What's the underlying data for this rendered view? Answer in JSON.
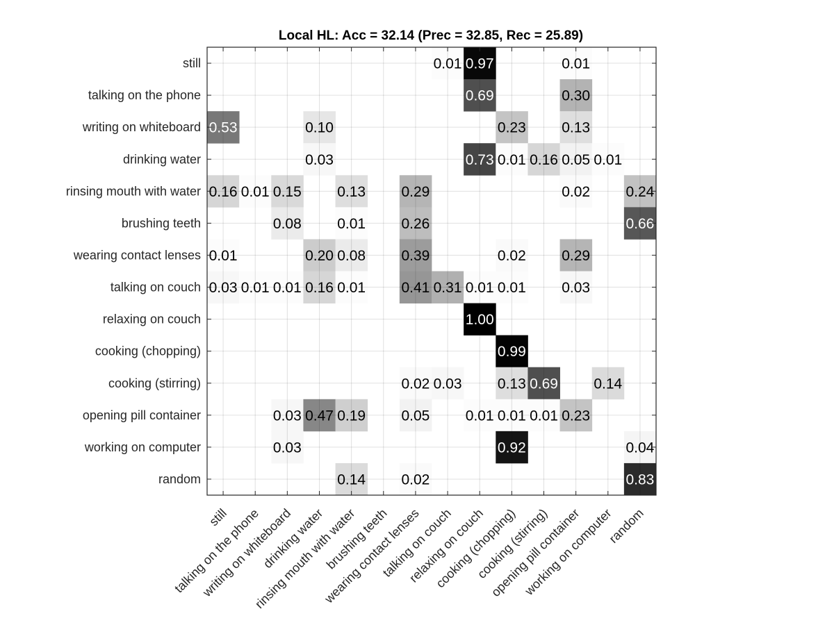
{
  "chart_data": {
    "type": "heatmap",
    "title": "Local HL: Acc = 32.14 (Prec = 32.85, Rec = 25.89)",
    "xlabel": "",
    "ylabel": "",
    "colormap": "gray (white = 0, black = 1)",
    "grid": true,
    "row_labels": [
      "still",
      "talking on the phone",
      "writing on whiteboard",
      "drinking water",
      "rinsing mouth with water",
      "brushing teeth",
      "wearing contact lenses",
      "talking on couch",
      "relaxing on couch",
      "cooking (chopping)",
      "cooking (stirring)",
      "opening pill container",
      "working on computer",
      "random"
    ],
    "col_labels": [
      "still",
      "talking on the phone",
      "writing on whiteboard",
      "drinking water",
      "rinsing mouth with water",
      "brushing teeth",
      "wearing contact lenses",
      "talking on couch",
      "relaxing on couch",
      "cooking (chopping)",
      "cooking (stirring)",
      "opening pill container",
      "working on computer",
      "random"
    ],
    "values": [
      [
        0,
        0,
        0,
        0,
        0,
        0,
        0,
        0.01,
        0.97,
        0,
        0,
        0.01,
        0,
        0
      ],
      [
        0,
        0,
        0,
        0,
        0,
        0,
        0,
        0,
        0.69,
        0,
        0,
        0.3,
        0,
        0
      ],
      [
        0.53,
        0,
        0,
        0.1,
        0,
        0,
        0,
        0,
        0,
        0.23,
        0,
        0.13,
        0,
        0
      ],
      [
        0,
        0,
        0,
        0.03,
        0,
        0,
        0,
        0,
        0.73,
        0.01,
        0.16,
        0.05,
        0.01,
        0
      ],
      [
        0.16,
        0.01,
        0.15,
        0,
        0.13,
        0,
        0.29,
        0,
        0,
        0,
        0,
        0.02,
        0,
        0.24
      ],
      [
        0,
        0,
        0.08,
        0,
        0.01,
        0,
        0.26,
        0,
        0,
        0,
        0,
        0,
        0,
        0.66
      ],
      [
        0.01,
        0,
        0,
        0.2,
        0.08,
        0,
        0.39,
        0,
        0,
        0.02,
        0,
        0.29,
        0,
        0
      ],
      [
        0.03,
        0.01,
        0.01,
        0.16,
        0.01,
        0,
        0.41,
        0.31,
        0.01,
        0.01,
        0,
        0.03,
        0,
        0
      ],
      [
        0,
        0,
        0,
        0,
        0,
        0,
        0,
        0,
        1.0,
        0,
        0,
        0,
        0,
        0
      ],
      [
        0,
        0,
        0,
        0,
        0,
        0,
        0,
        0,
        0,
        0.99,
        0,
        0,
        0,
        0
      ],
      [
        0,
        0,
        0,
        0,
        0,
        0,
        0.02,
        0.03,
        0,
        0.13,
        0.69,
        0,
        0.14,
        0
      ],
      [
        0,
        0,
        0.03,
        0.47,
        0.19,
        0,
        0.05,
        0,
        0.01,
        0.01,
        0.01,
        0.23,
        0,
        0
      ],
      [
        0,
        0,
        0.03,
        0,
        0,
        0,
        0,
        0,
        0,
        0.92,
        0,
        0,
        0,
        0.04
      ],
      [
        0,
        0,
        0,
        0,
        0.14,
        0,
        0.02,
        0,
        0,
        0,
        0,
        0,
        0,
        0.83
      ]
    ],
    "cell_text": [
      [
        "",
        "",
        "",
        "",
        "",
        "",
        "",
        "0.01",
        "0.97",
        "",
        "",
        "0.01",
        "",
        ""
      ],
      [
        "",
        "",
        "",
        "",
        "",
        "",
        "",
        "",
        "0.69",
        "",
        "",
        "0.30",
        "",
        ""
      ],
      [
        "0.53",
        "",
        "",
        "0.10",
        "",
        "",
        "",
        "",
        "",
        "0.23",
        "",
        "0.13",
        "",
        ""
      ],
      [
        "",
        "",
        "",
        "0.03",
        "",
        "",
        "",
        "",
        "0.73",
        "0.01",
        "0.16",
        "0.05",
        "0.01",
        ""
      ],
      [
        "0.16",
        "0.01",
        "0.15",
        "",
        "0.13",
        "",
        "0.29",
        "",
        "",
        "",
        "",
        "0.02",
        "",
        "0.24"
      ],
      [
        "",
        "",
        "0.08",
        "",
        "0.01",
        "",
        "0.26",
        "",
        "",
        "",
        "",
        "",
        "",
        "0.66"
      ],
      [
        "0.01",
        "",
        "",
        "0.20",
        "0.08",
        "",
        "0.39",
        "",
        "",
        "0.02",
        "",
        "0.29",
        "",
        ""
      ],
      [
        "0.03",
        "0.01",
        "0.01",
        "0.16",
        "0.01",
        "",
        "0.41",
        "0.31",
        "0.01",
        "0.01",
        "",
        "0.03",
        "",
        ""
      ],
      [
        "",
        "",
        "",
        "",
        "",
        "",
        "",
        "",
        "1.00",
        "",
        "",
        "",
        "",
        ""
      ],
      [
        "",
        "",
        "",
        "",
        "",
        "",
        "",
        "",
        "",
        "0.99",
        "",
        "",
        "",
        ""
      ],
      [
        "",
        "",
        "",
        "",
        "",
        "",
        "0.02",
        "0.03",
        "",
        "0.13",
        "0.69",
        "",
        "0.14",
        ""
      ],
      [
        "",
        "",
        "0.03",
        "0.47",
        "0.19",
        "",
        "0.05",
        "",
        "0.01",
        "0.01",
        "0.01",
        "0.23",
        "",
        ""
      ],
      [
        "",
        "",
        "0.03",
        "",
        "",
        "",
        "",
        "",
        "",
        "0.92",
        "",
        "",
        "",
        "0.04"
      ],
      [
        "",
        "",
        "",
        "",
        "0.14",
        "",
        "0.02",
        "",
        "",
        "",
        "",
        "",
        "",
        "0.83"
      ]
    ]
  }
}
